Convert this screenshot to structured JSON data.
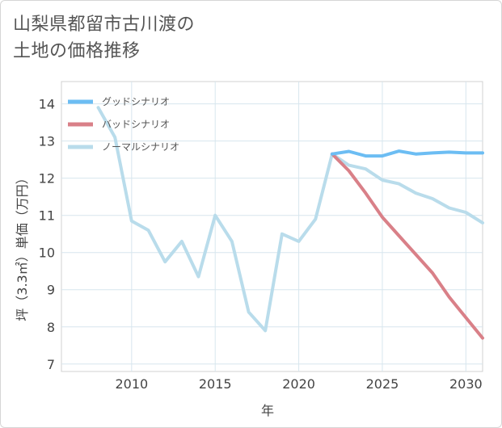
{
  "title_lines": [
    "山梨県都留市古川渡の",
    "土地の価格推移"
  ],
  "chart_data": {
    "type": "line",
    "title": "山梨県都留市古川渡の土地の価格推移",
    "xlabel": "年",
    "ylabel": "坪（3.3㎡）単価（万円）",
    "xlim": [
      2005.8,
      2031
    ],
    "ylim": [
      6.8,
      14.6
    ],
    "x_ticks": [
      2010,
      2015,
      2020,
      2025,
      2030
    ],
    "y_ticks": [
      7,
      8,
      9,
      10,
      11,
      12,
      13,
      14
    ],
    "grid": true,
    "legend_position": "top-left",
    "series": [
      {
        "name": "グッドシナリオ",
        "color": "#6cbdf3",
        "x": [
          2022,
          2023,
          2024,
          2025,
          2026,
          2027,
          2028,
          2029,
          2030,
          2031
        ],
        "values": [
          12.65,
          12.72,
          12.6,
          12.6,
          12.73,
          12.65,
          12.68,
          12.7,
          12.68,
          12.68
        ]
      },
      {
        "name": "バッドシナリオ",
        "color": "#d98088",
        "x": [
          2022,
          2023,
          2024,
          2025,
          2026,
          2027,
          2028,
          2029,
          2030,
          2031
        ],
        "values": [
          12.65,
          12.2,
          11.6,
          10.95,
          10.45,
          9.95,
          9.45,
          8.8,
          8.25,
          7.7
        ]
      },
      {
        "name": "ノーマルシナリオ",
        "color": "#b9dceb",
        "x": [
          2008,
          2009,
          2010,
          2011,
          2012,
          2013,
          2014,
          2015,
          2016,
          2017,
          2018,
          2019,
          2020,
          2021,
          2022,
          2023,
          2024,
          2025,
          2026,
          2027,
          2028,
          2029,
          2030,
          2031
        ],
        "values": [
          13.9,
          13.1,
          10.85,
          10.6,
          9.75,
          10.3,
          9.35,
          11.0,
          10.3,
          8.4,
          7.9,
          10.5,
          10.3,
          10.9,
          12.65,
          12.35,
          12.25,
          11.95,
          11.85,
          11.6,
          11.45,
          11.2,
          11.08,
          10.8
        ]
      }
    ]
  }
}
